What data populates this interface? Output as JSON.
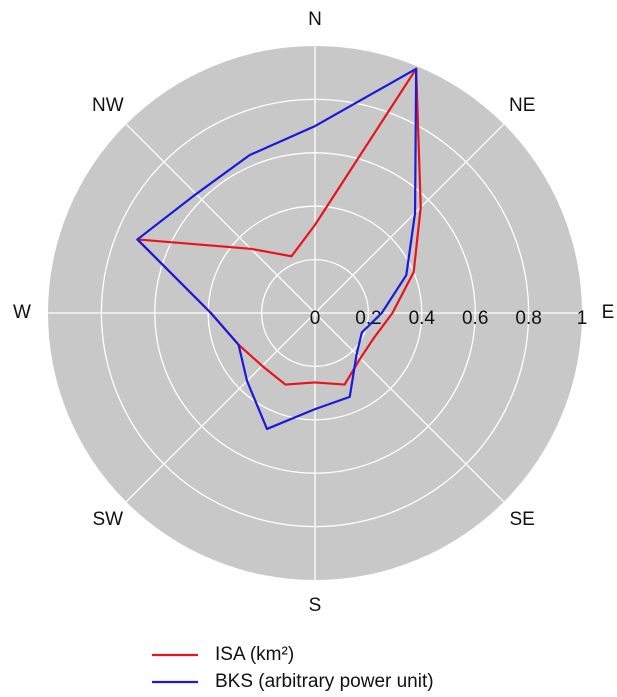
{
  "chart_data": {
    "type": "radar",
    "categories": [
      "N",
      null,
      "NE",
      null,
      "E",
      null,
      "SE",
      null,
      "S",
      null,
      "SW",
      null,
      "W",
      null,
      "NW",
      null
    ],
    "series": [
      {
        "name": "ISA (km²)",
        "color": "#e8141c",
        "values": [
          0.33,
          0.99,
          0.56,
          0.4,
          0.29,
          0.24,
          0.24,
          0.29,
          0.26,
          0.29,
          0.28,
          0.31,
          0.39,
          0.72,
          0.34,
          0.23
        ]
      },
      {
        "name": "BKS (arbitrary power unit)",
        "color": "#1a1adb",
        "values": [
          0.7,
          0.99,
          0.53,
          0.37,
          0.25,
          0.19,
          0.22,
          0.34,
          0.36,
          0.47,
          0.36,
          0.31,
          0.39,
          0.72,
          0.63,
          0.64
        ]
      }
    ],
    "rlim": [
      0,
      1
    ],
    "rticks": [
      0,
      0.2,
      0.4,
      0.6,
      0.8,
      1
    ],
    "grid": true,
    "background": "#c8c8c8"
  }
}
